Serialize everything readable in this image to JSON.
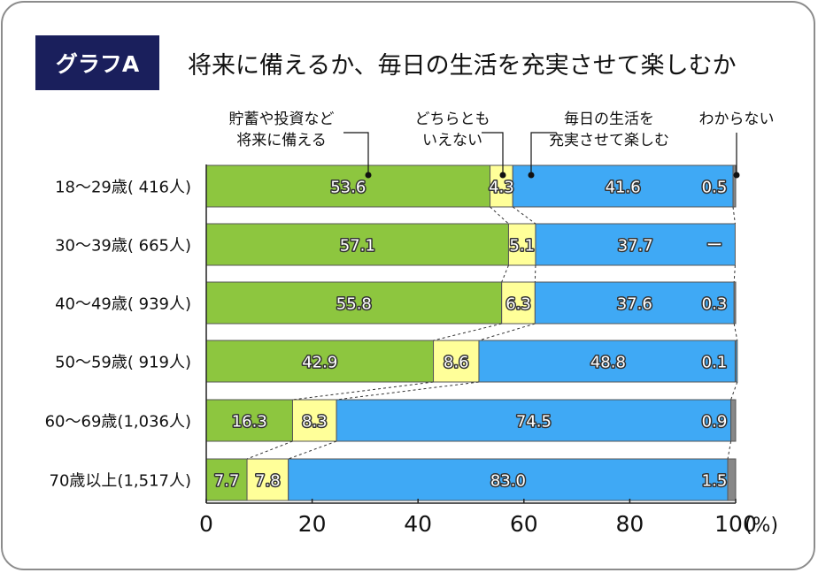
{
  "badge": "グラフA",
  "title": "将来に備えるか、毎日の生活を充実させて楽しむか",
  "colors": {
    "save": "#8dc63f",
    "neither": "#ffff99",
    "enjoy": "#3fa9f5",
    "unknown": "#888888",
    "badge": "#1a1f5c"
  },
  "chart_data": {
    "type": "bar",
    "orientation": "horizontal",
    "stacked": true,
    "xlim": [
      0,
      100
    ],
    "xticks": [
      "0",
      "20",
      "40",
      "60",
      "80",
      "100"
    ],
    "unit": "(%)",
    "none_symbol": "ー",
    "categories": [
      "18〜29歳(  416人)",
      "30〜39歳(  665人)",
      "40〜49歳(  939人)",
      "50〜59歳(  919人)",
      "60〜69歳(1,036人)",
      "70歳以上(1,517人)"
    ],
    "series": [
      {
        "name": "貯蓄や投資など将来に備える",
        "legend_lines": [
          "貯蓄や投資など",
          "将来に備える"
        ],
        "values": [
          53.6,
          57.1,
          55.8,
          42.9,
          16.3,
          7.7
        ]
      },
      {
        "name": "どちらともいえない",
        "legend_lines": [
          "どちらとも",
          "いえない"
        ],
        "values": [
          4.3,
          5.1,
          6.3,
          8.6,
          8.3,
          7.8
        ]
      },
      {
        "name": "毎日の生活を充実させて楽しむ",
        "legend_lines": [
          "毎日の生活を",
          "充実させて楽しむ"
        ],
        "values": [
          41.6,
          37.7,
          37.6,
          48.8,
          74.5,
          83.0
        ]
      },
      {
        "name": "わからない",
        "legend_lines": [
          "わからない"
        ],
        "values": [
          0.5,
          null,
          0.3,
          0.1,
          0.9,
          1.5
        ]
      }
    ]
  }
}
